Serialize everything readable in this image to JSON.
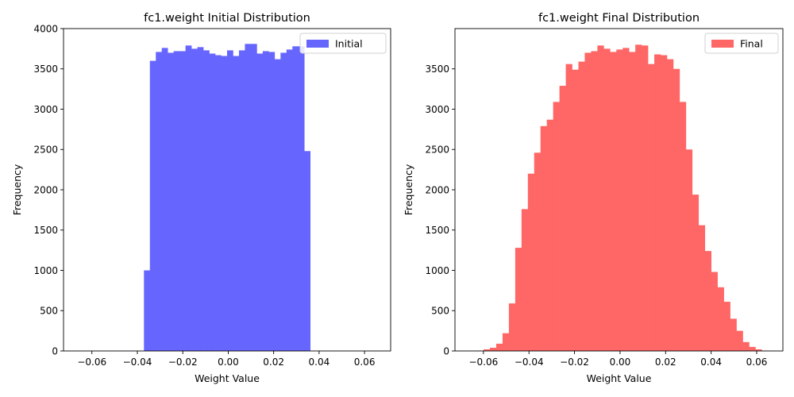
{
  "chart_data": [
    {
      "type": "bar",
      "title": "fc1.weight Initial Distribution",
      "xlabel": "Weight Value",
      "ylabel": "Frequency",
      "xlim": [
        -0.0725,
        0.0715
      ],
      "ylim": [
        0,
        4000
      ],
      "xticks": [
        -0.06,
        -0.04,
        -0.02,
        0.0,
        0.02,
        0.04,
        0.06
      ],
      "xtick_labels": [
        "−0.06",
        "−0.04",
        "−0.02",
        "0.00",
        "0.02",
        "0.04",
        "0.06"
      ],
      "yticks": [
        0,
        500,
        1000,
        1500,
        2000,
        2500,
        3000,
        3500,
        4000
      ],
      "ytick_labels": [
        "0",
        "500",
        "1000",
        "1500",
        "2000",
        "2500",
        "3000",
        "3500",
        "4000"
      ],
      "grid": false,
      "legend_position": "top-right",
      "series": [
        {
          "name": "Initial",
          "color": "#6666ff",
          "bin_start": -0.0371,
          "bin_end": 0.0361,
          "values": [
            1000,
            3600,
            3710,
            3760,
            3700,
            3720,
            3720,
            3790,
            3750,
            3770,
            3730,
            3690,
            3670,
            3660,
            3730,
            3660,
            3730,
            3810,
            3810,
            3690,
            3720,
            3710,
            3620,
            3700,
            3740,
            3780,
            3780,
            2480
          ]
        }
      ]
    },
    {
      "type": "bar",
      "title": "fc1.weight Final Distribution",
      "xlabel": "Weight Value",
      "ylabel": "Frequency",
      "xlim": [
        -0.0725,
        0.0715
      ],
      "ylim": [
        0,
        4000
      ],
      "xticks": [
        -0.06,
        -0.04,
        -0.02,
        0.0,
        0.02,
        0.04,
        0.06
      ],
      "xtick_labels": [
        "−0.06",
        "−0.04",
        "−0.02",
        "0.00",
        "0.02",
        "0.04",
        "0.06"
      ],
      "yticks": [
        0,
        500,
        1000,
        1500,
        2000,
        2500,
        3000,
        3500
      ],
      "ytick_labels": [
        "0",
        "500",
        "1000",
        "1500",
        "2000",
        "2500",
        "3000",
        "3500"
      ],
      "grid": false,
      "legend_position": "top-right",
      "series": [
        {
          "name": "Final",
          "color": "#ff6666",
          "bin_start": -0.0627,
          "bin_end": 0.065,
          "values": [
            5,
            20,
            40,
            90,
            220,
            590,
            1280,
            1760,
            2200,
            2460,
            2790,
            2870,
            3090,
            3290,
            3560,
            3490,
            3590,
            3700,
            3720,
            3790,
            3750,
            3710,
            3740,
            3760,
            3710,
            3800,
            3790,
            3560,
            3680,
            3670,
            3620,
            3500,
            3090,
            2500,
            1940,
            1560,
            1240,
            980,
            790,
            610,
            400,
            250,
            110,
            50,
            20,
            5
          ]
        }
      ]
    }
  ]
}
